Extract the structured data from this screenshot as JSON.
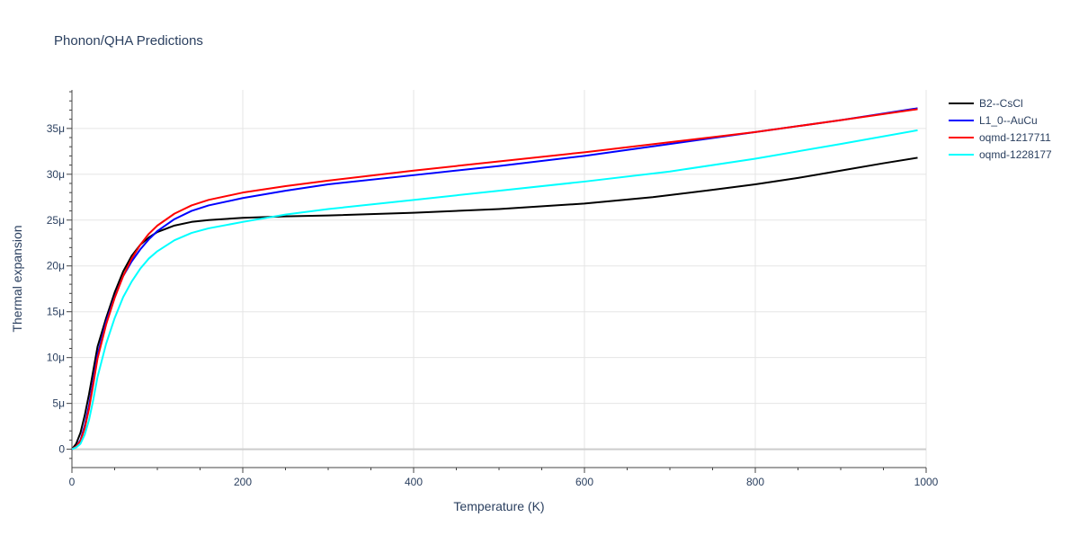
{
  "chart_data": {
    "type": "line",
    "title": "Phonon/QHA Predictions",
    "xlabel": "Temperature (K)",
    "ylabel": "Thermal expansion",
    "xlim": [
      0,
      1000
    ],
    "ylim": [
      -2e-06,
      3.92e-05
    ],
    "x_ticks": [
      0,
      200,
      400,
      600,
      800,
      1000
    ],
    "x_tick_labels": [
      "0",
      "200",
      "400",
      "600",
      "800",
      "1000"
    ],
    "y_ticks": [
      0,
      5e-06,
      1e-05,
      1.5e-05,
      2e-05,
      2.5e-05,
      3e-05,
      3.5e-05
    ],
    "y_tick_labels": [
      "0",
      "5μ",
      "10μ",
      "15μ",
      "20μ",
      "25μ",
      "30μ",
      "35μ"
    ],
    "grid": true,
    "legend_position": "right",
    "series": [
      {
        "name": "B2--CsCl",
        "color": "#000000",
        "x": [
          0,
          5,
          10,
          15,
          20,
          25,
          30,
          40,
          50,
          60,
          70,
          80,
          90,
          100,
          120,
          140,
          160,
          200,
          250,
          300,
          400,
          500,
          600,
          680,
          750,
          800,
          850,
          900,
          950,
          990
        ],
        "y": [
          0,
          6e-07,
          1.8e-06,
          3.7e-06,
          6e-06,
          8.6e-06,
          1.12e-05,
          1.43e-05,
          1.71e-05,
          1.94e-05,
          2.11e-05,
          2.23e-05,
          2.31e-05,
          2.37e-05,
          2.44e-05,
          2.48e-05,
          2.5e-05,
          2.525e-05,
          2.54e-05,
          2.55e-05,
          2.58e-05,
          2.62e-05,
          2.68e-05,
          2.75e-05,
          2.83e-05,
          2.89e-05,
          2.96e-05,
          3.04e-05,
          3.12e-05,
          3.18e-05
        ]
      },
      {
        "name": "L1_0--AuCu",
        "color": "#0000ff",
        "x": [
          0,
          5,
          10,
          15,
          20,
          25,
          30,
          40,
          50,
          60,
          70,
          80,
          90,
          100,
          120,
          140,
          160,
          200,
          250,
          300,
          400,
          500,
          600,
          700,
          800,
          900,
          990
        ],
        "y": [
          0,
          3e-07,
          1e-06,
          2.6e-06,
          4.8e-06,
          7.5e-06,
          1.03e-05,
          1.39e-05,
          1.66e-05,
          1.89e-05,
          2.05e-05,
          2.18e-05,
          2.29e-05,
          2.38e-05,
          2.51e-05,
          2.6e-05,
          2.66e-05,
          2.74e-05,
          2.82e-05,
          2.89e-05,
          2.99e-05,
          3.09e-05,
          3.2e-05,
          3.33e-05,
          3.46e-05,
          3.59e-05,
          3.72e-05
        ]
      },
      {
        "name": "oqmd-1217711",
        "color": "#ff0000",
        "x": [
          0,
          5,
          10,
          15,
          20,
          25,
          30,
          40,
          50,
          60,
          70,
          80,
          90,
          100,
          120,
          140,
          160,
          200,
          250,
          300,
          400,
          500,
          600,
          700,
          800,
          900,
          990
        ],
        "y": [
          0,
          3e-07,
          9e-07,
          2.3e-06,
          4.4e-06,
          7.1e-06,
          9.9e-06,
          1.36e-05,
          1.65e-05,
          1.89e-05,
          2.08e-05,
          2.23e-05,
          2.35e-05,
          2.44e-05,
          2.57e-05,
          2.66e-05,
          2.72e-05,
          2.8e-05,
          2.87e-05,
          2.93e-05,
          3.04e-05,
          3.14e-05,
          3.24e-05,
          3.35e-05,
          3.46e-05,
          3.59e-05,
          3.71e-05
        ]
      },
      {
        "name": "oqmd-1228177",
        "color": "#00ffff",
        "x": [
          0,
          5,
          10,
          15,
          20,
          25,
          30,
          40,
          50,
          60,
          70,
          80,
          90,
          100,
          120,
          140,
          160,
          200,
          250,
          300,
          400,
          500,
          600,
          700,
          800,
          900,
          990
        ],
        "y": [
          0,
          2e-07,
          6e-07,
          1.6e-06,
          3.2e-06,
          5.4e-06,
          7.9e-06,
          1.15e-05,
          1.43e-05,
          1.66e-05,
          1.83e-05,
          1.97e-05,
          2.08e-05,
          2.16e-05,
          2.28e-05,
          2.36e-05,
          2.41e-05,
          2.48e-05,
          2.56e-05,
          2.62e-05,
          2.72e-05,
          2.82e-05,
          2.92e-05,
          3.03e-05,
          3.17e-05,
          3.33e-05,
          3.48e-05
        ]
      }
    ]
  }
}
